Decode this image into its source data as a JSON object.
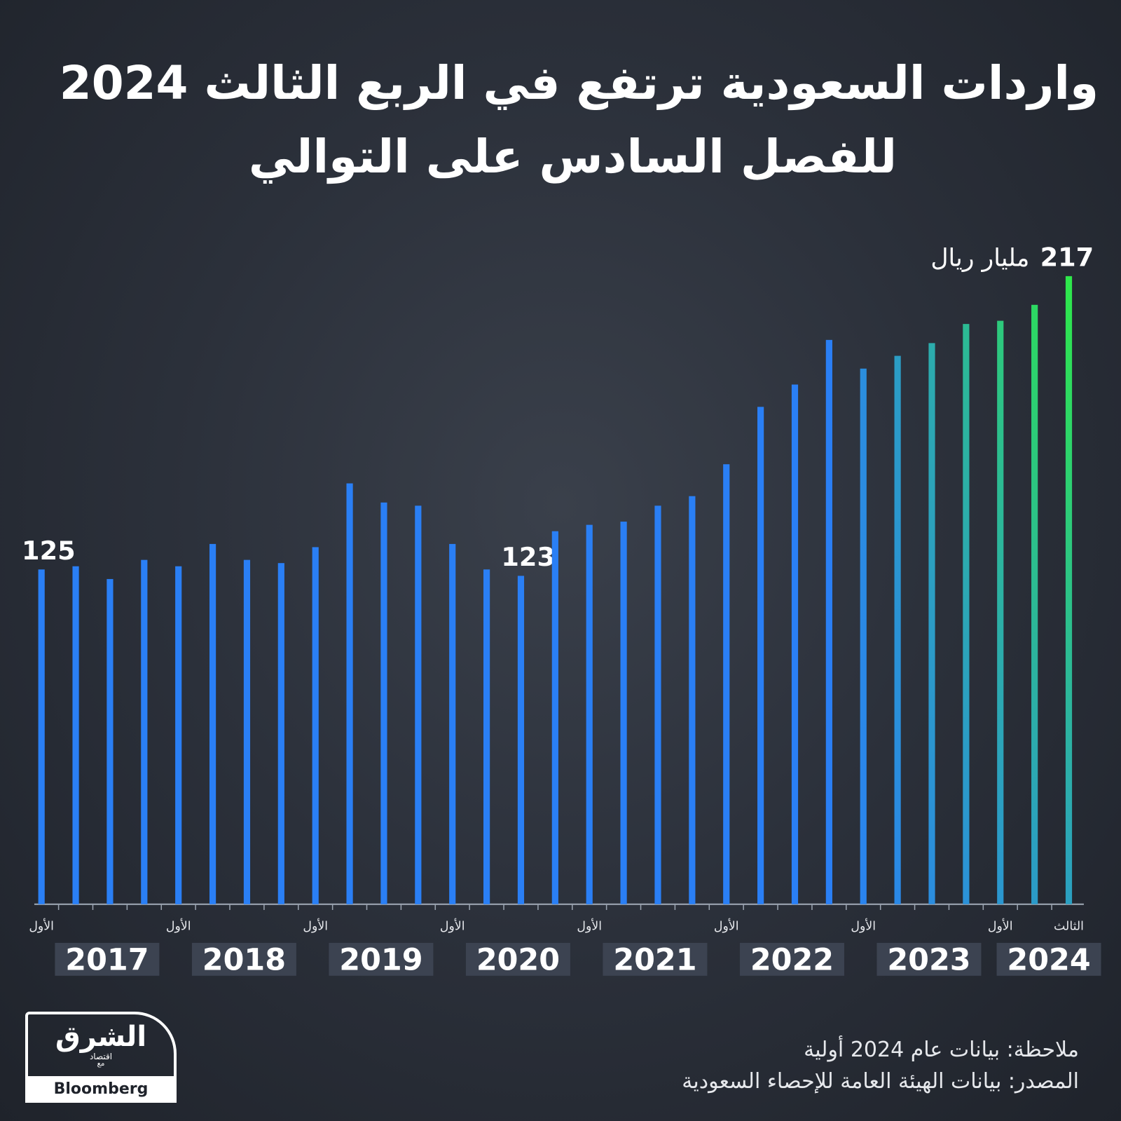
{
  "chart_data": {
    "type": "bar",
    "title": "واردات السعودية ترتفع في الربع الثالث 2024",
    "subtitle": "للفصل السادس على التوالي",
    "categories": [
      "الأول",
      null,
      null,
      null,
      "الأول",
      null,
      null,
      null,
      "الأول",
      null,
      null,
      null,
      "الأول",
      null,
      null,
      null,
      "الأول",
      null,
      null,
      null,
      "الأول",
      null,
      null,
      null,
      "الأول",
      null,
      null,
      null,
      "الأول",
      null,
      "الثالث"
    ],
    "years": [
      "2017",
      "2018",
      "2019",
      "2020",
      "2021",
      "2022",
      "2023",
      "2024"
    ],
    "values": [
      125,
      126,
      122,
      128,
      126,
      133,
      128,
      127,
      132,
      152,
      146,
      145,
      133,
      125,
      123,
      137,
      139,
      140,
      145,
      148,
      158,
      176,
      183,
      197,
      188,
      192,
      196,
      202,
      203,
      208,
      217
    ],
    "value_labels": [
      "125",
      null,
      null,
      null,
      null,
      null,
      null,
      null,
      null,
      null,
      null,
      null,
      null,
      null,
      "123",
      null,
      null,
      null,
      null,
      null,
      null,
      null,
      null,
      null,
      null,
      null,
      null,
      null,
      null,
      null,
      "217"
    ],
    "unit_label": "مليار ريال",
    "color": "#2a7ff5",
    "highlight_color": "#2ee84a",
    "ylim": [
      20,
      217
    ],
    "note": "ملاحظة: بيانات عام 2024 أولية",
    "source": "المصدر: بيانات الهيئة العامة للإحصاء السعودية"
  },
  "logo": {
    "name": "الشرق",
    "tagline": "اقتصاد",
    "with": "مع",
    "partner": "Bloomberg"
  }
}
